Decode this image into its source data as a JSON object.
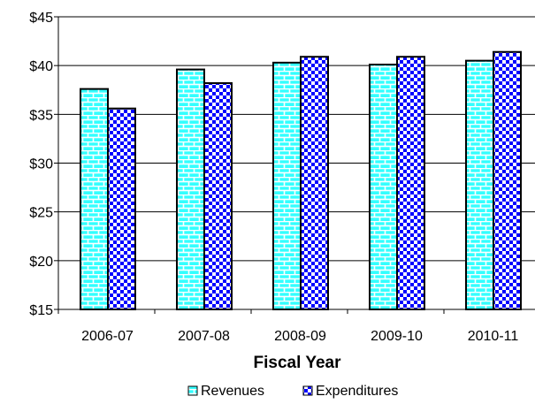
{
  "chart_data": {
    "type": "bar",
    "title": "",
    "xlabel": "Fiscal Year",
    "ylabel": "",
    "categories": [
      "2006-07",
      "2007-08",
      "2008-09",
      "2009-10",
      "2010-11"
    ],
    "series": [
      {
        "name": "Revenues",
        "values": [
          37.6,
          39.6,
          40.3,
          40.1,
          40.5
        ],
        "color": "#33ffff",
        "pattern": "brick",
        "pattern_color": "#ffffff"
      },
      {
        "name": "Expenditures",
        "values": [
          35.6,
          38.2,
          40.9,
          40.9,
          41.4
        ],
        "color": "#ffffff",
        "pattern": "checker",
        "pattern_color": "#0000ff"
      }
    ],
    "ylim": [
      15,
      45
    ],
    "yticks": [
      15,
      20,
      25,
      30,
      35,
      40,
      45
    ],
    "ytick_labels": [
      "$15",
      "$20",
      "$25",
      "$30",
      "$35",
      "$40",
      "$45"
    ],
    "grid": true,
    "legend_position": "bottom"
  }
}
